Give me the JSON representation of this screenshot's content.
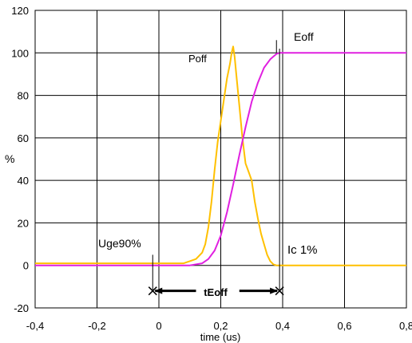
{
  "chart_data": {
    "type": "line",
    "title": "",
    "xlabel": "time (us)",
    "ylabel": "%",
    "xlim": [
      -0.4,
      0.8
    ],
    "ylim": [
      -20,
      120
    ],
    "x_ticks": [
      -0.4,
      -0.2,
      0,
      0.2,
      0.4,
      0.6,
      0.8
    ],
    "x_tick_labels": [
      "-0,4",
      "-0,2",
      "0",
      "0,2",
      "0,4",
      "0,6",
      "0,8"
    ],
    "y_ticks": [
      -20,
      0,
      20,
      40,
      60,
      80,
      100,
      120
    ],
    "y_tick_labels": [
      "-20",
      "0",
      "20",
      "40",
      "60",
      "80",
      "100",
      "120"
    ],
    "grid": true,
    "legend": "none",
    "series": [
      {
        "name": "Poff",
        "color": "#FFC000",
        "x": [
          -0.4,
          -0.35,
          -0.3,
          -0.25,
          -0.2,
          -0.15,
          -0.1,
          -0.05,
          0,
          0.05,
          0.08,
          0.1,
          0.12,
          0.14,
          0.15,
          0.16,
          0.17,
          0.18,
          0.19,
          0.2,
          0.21,
          0.22,
          0.23,
          0.235,
          0.24,
          0.245,
          0.25,
          0.26,
          0.27,
          0.28,
          0.29,
          0.3,
          0.31,
          0.32,
          0.33,
          0.34,
          0.35,
          0.36,
          0.37,
          0.38,
          0.39,
          0.4,
          0.5,
          0.6,
          0.7,
          0.8
        ],
        "y": [
          1,
          1,
          1,
          1,
          1,
          1,
          1,
          1,
          1,
          1,
          1,
          2,
          3,
          6,
          10,
          18,
          30,
          45,
          58,
          68,
          78,
          88,
          95,
          100,
          103,
          98,
          90,
          75,
          60,
          48,
          44,
          40,
          30,
          22,
          15,
          10,
          5,
          2,
          0.5,
          0,
          0,
          0,
          0,
          0,
          0,
          0
        ]
      },
      {
        "name": "Eoff",
        "color": "#E020E0",
        "x": [
          -0.4,
          -0.2,
          0,
          0.1,
          0.14,
          0.16,
          0.18,
          0.2,
          0.22,
          0.24,
          0.26,
          0.28,
          0.3,
          0.32,
          0.34,
          0.36,
          0.38,
          0.39,
          0.4,
          0.5,
          0.6,
          0.7,
          0.8
        ],
        "y": [
          0,
          0,
          0,
          0,
          1,
          3,
          7,
          14,
          25,
          38,
          52,
          65,
          77,
          86,
          93,
          97,
          99.5,
          100,
          100,
          100,
          100,
          100,
          100
        ]
      }
    ],
    "annotations": {
      "poff": "Poff",
      "eoff": "Eoff",
      "uge": "Uge90%",
      "ic": "Ic 1%",
      "teoff": "tEoff"
    },
    "markers": {
      "t_start": -0.02,
      "t_end": 0.39,
      "arrow_y": -12,
      "eoff_line_x": 0.38
    }
  }
}
